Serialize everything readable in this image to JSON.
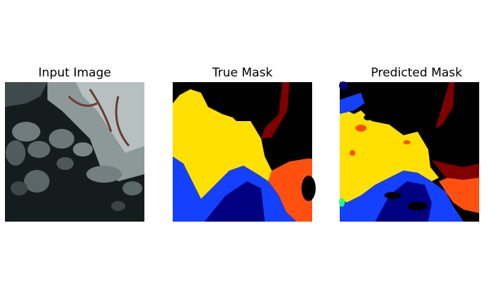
{
  "panels": [
    {
      "title": "Input Image"
    },
    {
      "title": "True Mask"
    },
    {
      "title": "Predicted Mask"
    }
  ]
}
